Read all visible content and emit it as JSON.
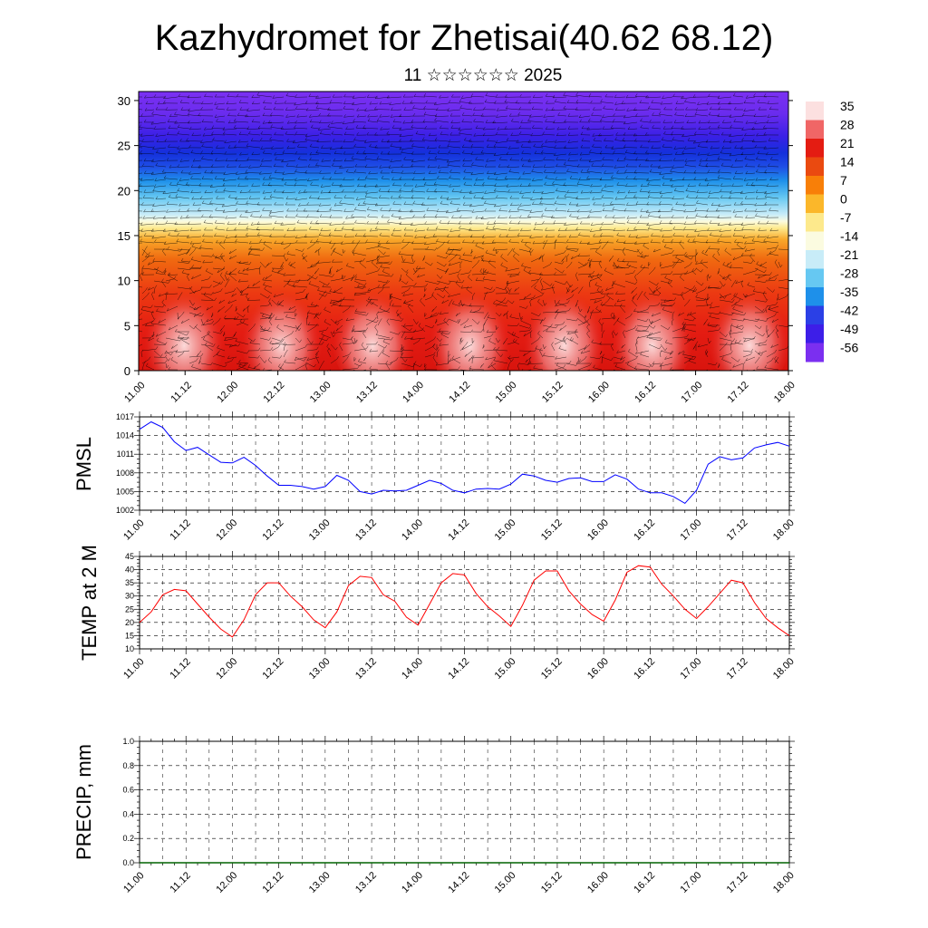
{
  "title": "Kazhydromet for Zhetisai(40.62 68.12)",
  "subtitle": "11 ☆☆☆☆☆☆ 2025",
  "chart_data": [
    {
      "type": "heatmap",
      "name": "temperature-wind-cross-section",
      "y_ticks": [
        "0",
        "5",
        "10",
        "15",
        "20",
        "25",
        "30"
      ],
      "y_range": [
        0,
        31
      ],
      "x_ticks": [
        "11.00",
        "11.12",
        "12.00",
        "12.12",
        "13.00",
        "13.12",
        "14.00",
        "14.12",
        "15.00",
        "15.12",
        "16.00",
        "16.12",
        "17.00",
        "17.12",
        "18.00"
      ],
      "colorbar_labels": [
        "35",
        "28",
        "21",
        "14",
        "7",
        "0",
        "-7",
        "-14",
        "-21",
        "-28",
        "-35",
        "-42",
        "-49",
        "-56"
      ],
      "colorbar_colors": [
        "#fce0e0",
        "#f06666",
        "#e41c12",
        "#ea4a10",
        "#f87f08",
        "#fbb72a",
        "#fde98c",
        "#fbfbe0",
        "#c8ecf8",
        "#66c8f2",
        "#1e90ea",
        "#2b40e6",
        "#3d1ee8",
        "#7b2ff0"
      ]
    },
    {
      "type": "line",
      "name": "PMSL",
      "ylabel": "PMSL",
      "y_ticks": [
        "1002",
        "1005",
        "1008",
        "1011",
        "1014",
        "1017"
      ],
      "ylim": [
        1002,
        1017
      ],
      "x_ticks": [
        "11.00",
        "11.12",
        "12.00",
        "12.12",
        "13.00",
        "13.12",
        "14.00",
        "14.12",
        "15.00",
        "15.12",
        "16.00",
        "16.12",
        "17.00",
        "17.12",
        "18.00"
      ],
      "x": [
        0,
        3,
        6,
        9,
        12,
        15,
        18,
        21,
        24,
        27,
        30,
        33,
        36,
        39,
        42,
        45,
        48,
        51,
        54,
        57,
        60,
        63,
        66,
        69,
        72,
        75,
        78,
        81,
        84,
        87,
        90,
        93,
        96,
        99,
        102,
        105,
        108,
        111,
        114,
        117,
        120,
        123,
        126,
        129,
        132,
        135,
        138,
        141,
        144,
        147,
        150,
        153,
        156,
        159,
        162,
        165,
        168
      ],
      "values": [
        1015.0,
        1016.2,
        1015.3,
        1013.0,
        1011.6,
        1012.1,
        1010.9,
        1009.7,
        1009.6,
        1010.5,
        1009.2,
        1007.5,
        1006.0,
        1006.0,
        1005.8,
        1005.4,
        1005.8,
        1007.6,
        1006.8,
        1005.0,
        1004.6,
        1005.2,
        1005.1,
        1005.2,
        1006.0,
        1006.8,
        1006.3,
        1005.2,
        1004.8,
        1005.4,
        1005.5,
        1005.4,
        1006.2,
        1007.8,
        1007.5,
        1006.8,
        1006.5,
        1007.1,
        1007.2,
        1006.6,
        1006.6,
        1007.7,
        1007.0,
        1005.4,
        1004.8,
        1004.8,
        1004.2,
        1003.1,
        1005.2,
        1009.4,
        1010.6,
        1010.1,
        1010.4,
        1012.0,
        1012.5,
        1012.9,
        1012.3
      ],
      "color": "#0000ff"
    },
    {
      "type": "line",
      "name": "TEMP at 2 M",
      "ylabel": "TEMP at 2 M",
      "y_ticks": [
        "10",
        "15",
        "20",
        "25",
        "30",
        "35",
        "40",
        "45"
      ],
      "ylim": [
        10,
        45
      ],
      "x_ticks": [
        "11.00",
        "11.12",
        "12.00",
        "12.12",
        "13.00",
        "13.12",
        "14.00",
        "14.12",
        "15.00",
        "15.12",
        "16.00",
        "16.12",
        "17.00",
        "17.12",
        "18.00"
      ],
      "x": [
        0,
        3,
        6,
        9,
        12,
        15,
        18,
        21,
        24,
        27,
        30,
        33,
        36,
        39,
        42,
        45,
        48,
        51,
        54,
        57,
        60,
        63,
        66,
        69,
        72,
        75,
        78,
        81,
        84,
        87,
        90,
        93,
        96,
        99,
        102,
        105,
        108,
        111,
        114,
        117,
        120,
        123,
        126,
        129,
        132,
        135,
        138,
        141,
        144,
        147,
        150,
        153,
        156,
        159,
        162,
        165,
        168
      ],
      "values": [
        20.0,
        24.0,
        30.5,
        32.5,
        32.0,
        27.0,
        22.0,
        17.5,
        14.5,
        21.0,
        30.5,
        35.0,
        35.0,
        30.0,
        26.0,
        21.0,
        18.0,
        24.0,
        34.0,
        37.5,
        37.0,
        30.5,
        28.0,
        22.0,
        19.0,
        27.0,
        35.0,
        38.5,
        38.0,
        31.0,
        26.0,
        22.5,
        18.5,
        26.5,
        36.0,
        39.5,
        39.5,
        32.0,
        27.0,
        23.0,
        20.5,
        28.5,
        39.0,
        41.5,
        41.0,
        34.5,
        30.0,
        25.0,
        21.5,
        26.0,
        31.0,
        36.0,
        35.0,
        27.5,
        21.5,
        18.0,
        15.0
      ],
      "color": "#ff0000"
    },
    {
      "type": "line",
      "name": "PRECIP",
      "ylabel": "PRECIP, mm",
      "y_ticks": [
        "0.0",
        "0.2",
        "0.4",
        "0.6",
        "0.8",
        "1.0"
      ],
      "ylim": [
        0,
        1
      ],
      "x_ticks": [
        "11.00",
        "11.12",
        "12.00",
        "12.12",
        "13.00",
        "13.12",
        "14.00",
        "14.12",
        "15.00",
        "15.12",
        "16.00",
        "16.12",
        "17.00",
        "17.12",
        "18.00"
      ],
      "x": [
        0,
        168
      ],
      "values": [
        0,
        0
      ],
      "color": "#006400"
    }
  ]
}
